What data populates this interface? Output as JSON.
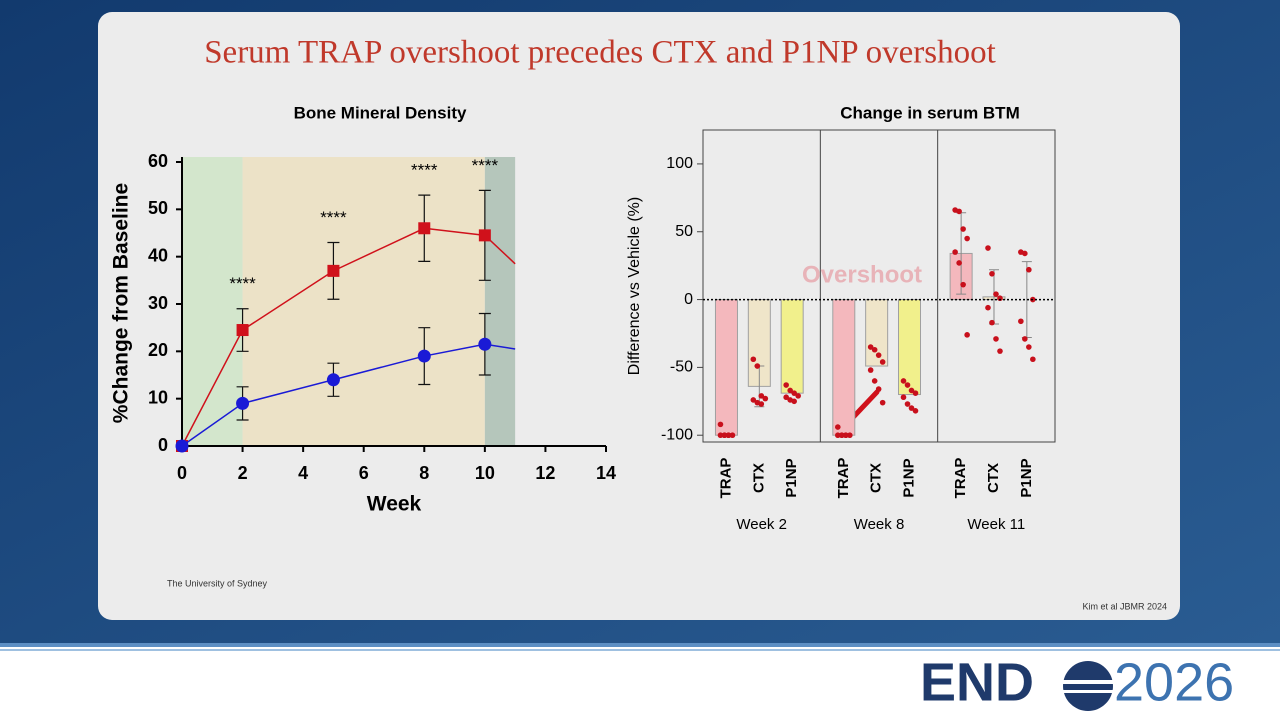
{
  "slide_title": "Serum TRAP overshoot precedes CTX and P1NP overshoot",
  "footer": {
    "left": "The University of Sydney",
    "right": "Kim et al JBMR 2024"
  },
  "logo": {
    "left": "END",
    "right": "2026"
  },
  "chart_data": [
    {
      "type": "line",
      "title": "Bone Mineral Density",
      "x_label": "Week",
      "y_label": "%Change from Baseline",
      "x": [
        0,
        2,
        5,
        8,
        10,
        11
      ],
      "series": [
        {
          "color": "#d0111b",
          "marker": "square",
          "values": [
            0,
            24.5,
            37,
            46,
            44.5,
            38.5
          ],
          "errors": [
            0,
            4.5,
            6,
            7,
            9.5,
            null
          ]
        },
        {
          "color": "#1a1ad6",
          "marker": "circle",
          "values": [
            0,
            9,
            14,
            19,
            21.5,
            20.5
          ],
          "errors": [
            0,
            3.5,
            3.5,
            6,
            6.5,
            null
          ]
        }
      ],
      "shaded_regions": [
        {
          "from": 0,
          "to": 2,
          "color": "#d3e6cc"
        },
        {
          "from": 2,
          "to": 10,
          "color": "#ece2c7"
        },
        {
          "from": 10,
          "to": 11,
          "color": "#b5c6bb"
        }
      ],
      "annotations": [
        {
          "text": "****",
          "x": 2,
          "series": 0
        },
        {
          "text": "****",
          "x": 5,
          "series": 0
        },
        {
          "text": "****",
          "x": 8,
          "series": 0
        },
        {
          "text": "****",
          "x": 10,
          "series": 0
        }
      ],
      "xlim": [
        0,
        14
      ],
      "xticks": [
        0,
        2,
        4,
        6,
        8,
        10,
        12,
        14
      ],
      "ylim": [
        0,
        60
      ],
      "yticks": [
        0,
        10,
        20,
        30,
        40,
        50,
        60
      ]
    },
    {
      "type": "grouped-bar",
      "title": "Change in serum BTM",
      "y_label": "Difference vs Vehicle (%)",
      "colors": [
        "#f4b8bd",
        "#efe5c9",
        "#f1f08c"
      ],
      "point_color": "#c8101c",
      "groups": [
        {
          "name": "Week 2",
          "categories": [
            "TRAP",
            "CTX",
            "P1NP"
          ],
          "values": [
            -100,
            -64,
            -69
          ],
          "errors": [
            null,
            15,
            null
          ],
          "points": [
            [
              -92,
              -100,
              -100,
              -100,
              -100,
              -100,
              -100
            ],
            [
              -44,
              -49,
              -71,
              -73,
              -74,
              -76,
              -77
            ],
            [
              -63,
              -67,
              -69,
              -71,
              -72,
              -74,
              -75
            ]
          ]
        },
        {
          "name": "Week 8",
          "categories": [
            "TRAP",
            "CTX",
            "P1NP"
          ],
          "values": [
            -100,
            -49,
            -70
          ],
          "errors": [
            null,
            null,
            null
          ],
          "points": [
            [
              -94,
              -100,
              -100,
              -100,
              -100,
              -100,
              -100
            ],
            [
              -35,
              -37,
              -41,
              -46,
              -52,
              -60,
              -66,
              -76
            ],
            [
              -60,
              -63,
              -67,
              -69,
              -72,
              -77,
              -80,
              -82
            ]
          ]
        },
        {
          "name": "Week 11",
          "categories": [
            "TRAP",
            "CTX",
            "P1NP"
          ],
          "values": [
            34,
            2,
            0
          ],
          "errors": [
            30,
            20,
            28
          ],
          "points": [
            [
              66,
              65,
              52,
              45,
              35,
              27,
              11,
              -26
            ],
            [
              38,
              19,
              4,
              1,
              -6,
              -17,
              -29,
              -38
            ],
            [
              35,
              34,
              22,
              0,
              -16,
              -29,
              -35,
              -44
            ]
          ]
        }
      ],
      "annotation": "Overshoot",
      "ylim": [
        -105,
        125
      ],
      "yticks": [
        -100,
        -50,
        0,
        50,
        100
      ]
    }
  ]
}
